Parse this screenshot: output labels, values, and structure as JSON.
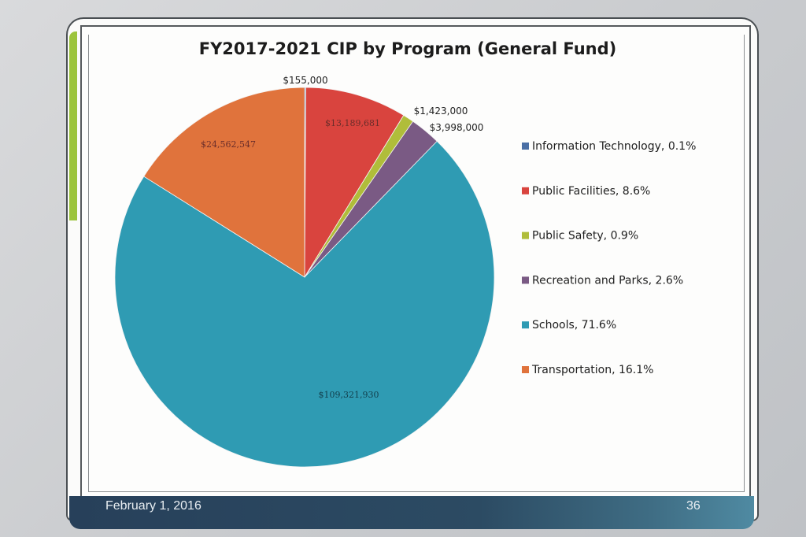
{
  "slide": {
    "date": "February 1, 2016",
    "page_number": "36"
  },
  "chart_data": {
    "type": "pie",
    "title": "FY2017-2021 CIP by Program (General Fund)",
    "slices": [
      {
        "name": "Information Technology",
        "value": 155000,
        "label": "$155,000",
        "legend": "Information Technology, 0.1%",
        "color": "#4a6fa5"
      },
      {
        "name": "Public Facilities",
        "value": 13189681,
        "label": "$13,189,681",
        "legend": "Public Facilities, 8.6%",
        "color": "#d9443e"
      },
      {
        "name": "Public Safety",
        "value": 1423000,
        "label": "$1,423,000",
        "legend": "Public Safety, 0.9%",
        "color": "#b0bd3a"
      },
      {
        "name": "Recreation and Parks",
        "value": 3998000,
        "label": "$3,998,000",
        "legend": "Recreation and Parks, 2.6%",
        "color": "#7a5a84"
      },
      {
        "name": "Schools",
        "value": 109321930,
        "label": "$109,321,930",
        "legend": "Schools, 71.6%",
        "color": "#2f9bb3"
      },
      {
        "name": "Transportation",
        "value": 24562547,
        "label": "$24,562,547",
        "legend": "Transportation, 16.1%",
        "color": "#e0733c"
      }
    ],
    "legend_position": "right"
  }
}
